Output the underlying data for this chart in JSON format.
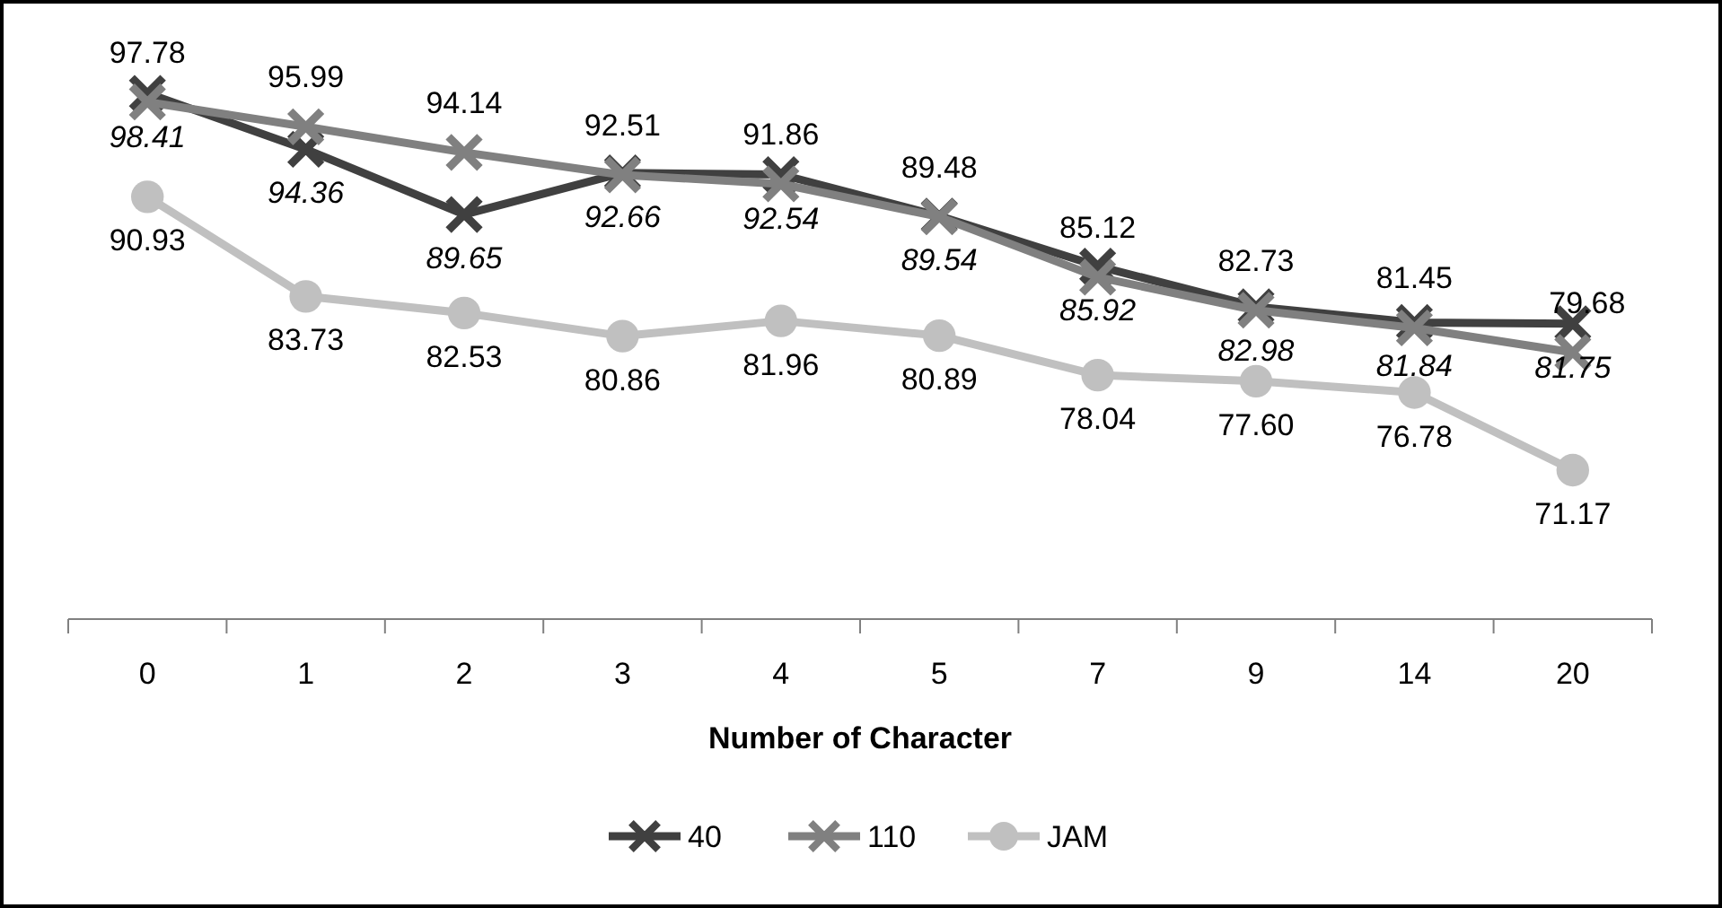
{
  "chart_data": {
    "type": "line",
    "xlabel": "Number of Character",
    "categories": [
      "0",
      "1",
      "2",
      "3",
      "4",
      "5",
      "7",
      "9",
      "14",
      "20"
    ],
    "series": [
      {
        "name": "40",
        "color": "#404040",
        "marker": "cross",
        "values": [
          98.41,
          94.36,
          89.65,
          92.66,
          92.54,
          89.54,
          85.92,
          82.98,
          81.84,
          81.75
        ],
        "value_labels": [
          "98.41",
          "94.36",
          "89.65",
          "92.66",
          "92.54",
          "89.54",
          "85.92",
          "82.98",
          "81.84",
          "81.75"
        ]
      },
      {
        "name": "110",
        "color": "#808080",
        "marker": "cross",
        "values": [
          97.78,
          95.99,
          94.14,
          92.51,
          91.86,
          89.48,
          85.12,
          82.73,
          81.45,
          79.68
        ],
        "value_labels": [
          "97.78",
          "95.99",
          "94.14",
          "92.51",
          "91.86",
          "89.48",
          "85.12",
          "82.73",
          "81.45",
          "79.68"
        ]
      },
      {
        "name": "JAM",
        "color": "#c0c0c0",
        "marker": "circle",
        "values": [
          90.93,
          83.73,
          82.53,
          80.86,
          81.96,
          80.89,
          78.04,
          77.6,
          76.78,
          71.17
        ],
        "value_labels": [
          "90.93",
          "83.73",
          "82.53",
          "80.86",
          "81.96",
          "80.89",
          "78.04",
          "77.60",
          "76.78",
          "71.17"
        ]
      }
    ],
    "legend": "bottom",
    "line_style": "solid"
  }
}
